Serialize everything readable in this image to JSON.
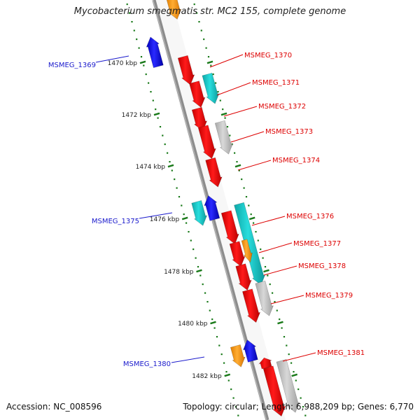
{
  "title": "Mycobacterium smegmatis str. MC2 155, complete genome",
  "footer": {
    "accession": "Accession: NC_008596",
    "stats": "Topology: circular; Length: 6,988,209 bp; Genes: 6,770"
  },
  "colors": {
    "backbone": "#8c8c8c",
    "tick": "#1a7a1a",
    "red": "#ee0000",
    "cyan": "#19c8c8",
    "blue": "#1111ee",
    "orange": "#ff9a00",
    "gray": "#bdbdbd",
    "label_red": "#dd0000",
    "label_blue": "#1a1acc"
  },
  "ticks": [
    {
      "label": "1470 kbp"
    },
    {
      "label": "1472 kbp"
    },
    {
      "label": "1474 kbp"
    },
    {
      "label": "1476 kbp"
    },
    {
      "label": "1478 kbp"
    },
    {
      "label": "1480 kbp"
    },
    {
      "label": "1482 kbp"
    }
  ],
  "gene_labels": [
    {
      "name": "MSMEG_1369",
      "color": "blue"
    },
    {
      "name": "MSMEG_1370",
      "color": "red"
    },
    {
      "name": "MSMEG_1371",
      "color": "red"
    },
    {
      "name": "MSMEG_1372",
      "color": "red"
    },
    {
      "name": "MSMEG_1373",
      "color": "red"
    },
    {
      "name": "MSMEG_1374",
      "color": "red"
    },
    {
      "name": "MSMEG_1375",
      "color": "blue"
    },
    {
      "name": "MSMEG_1376",
      "color": "red"
    },
    {
      "name": "MSMEG_1377",
      "color": "red"
    },
    {
      "name": "MSMEG_1378",
      "color": "red"
    },
    {
      "name": "MSMEG_1379",
      "color": "red"
    },
    {
      "name": "MSMEG_1380",
      "color": "blue"
    },
    {
      "name": "MSMEG_1381",
      "color": "red"
    }
  ]
}
